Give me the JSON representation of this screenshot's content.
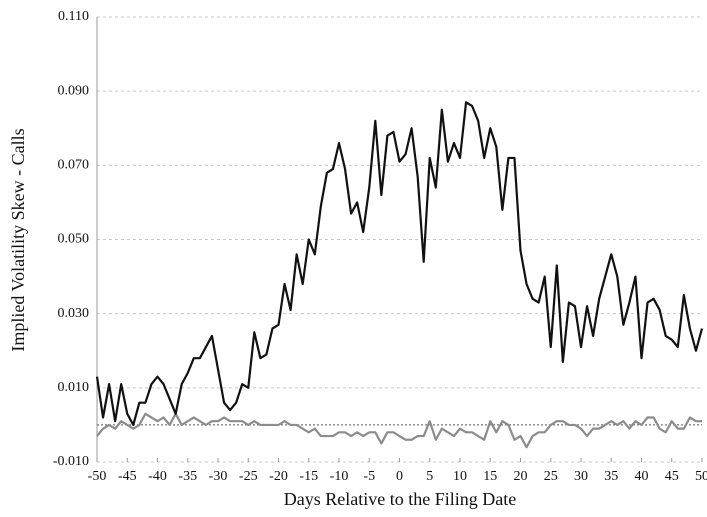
{
  "chart_data": {
    "type": "line",
    "x_label": "Days Relative to the Filing Date",
    "y_label": "Implied Volatility Skew - Calls",
    "xlim": [
      -50,
      50
    ],
    "xticks": [
      -50,
      -45,
      -40,
      -35,
      -30,
      -25,
      -20,
      -15,
      -10,
      -5,
      0,
      5,
      10,
      15,
      20,
      25,
      30,
      35,
      40,
      45,
      50
    ],
    "ylim": [
      -0.01,
      0.11
    ],
    "yticks": [
      {
        "value": -0.01,
        "label": "-0.010"
      },
      {
        "value": 0.01,
        "label": "0.010"
      },
      {
        "value": 0.03,
        "label": "0.030"
      },
      {
        "value": 0.05,
        "label": "0.050"
      },
      {
        "value": 0.07,
        "label": "0.070"
      },
      {
        "value": 0.09,
        "label": "0.090"
      },
      {
        "value": 0.11,
        "label": "0.110"
      }
    ],
    "grid": true,
    "reference_line": 0,
    "x": [
      -50,
      -49,
      -48,
      -47,
      -46,
      -45,
      -44,
      -43,
      -42,
      -41,
      -40,
      -39,
      -38,
      -37,
      -36,
      -35,
      -34,
      -33,
      -32,
      -31,
      -30,
      -29,
      -28,
      -27,
      -26,
      -25,
      -24,
      -23,
      -22,
      -21,
      -20,
      -19,
      -18,
      -17,
      -16,
      -15,
      -14,
      -13,
      -12,
      -11,
      -10,
      -9,
      -8,
      -7,
      -6,
      -5,
      -4,
      -3,
      -2,
      -1,
      0,
      1,
      2,
      3,
      4,
      5,
      6,
      7,
      8,
      9,
      10,
      11,
      12,
      13,
      14,
      15,
      16,
      17,
      18,
      19,
      20,
      21,
      22,
      23,
      24,
      25,
      26,
      27,
      28,
      29,
      30,
      31,
      32,
      33,
      34,
      35,
      36,
      37,
      38,
      39,
      40,
      41,
      42,
      43,
      44,
      45,
      46,
      47,
      48,
      49,
      50
    ],
    "series": [
      {
        "color": "#111111",
        "values": [
          0.013,
          0.002,
          0.011,
          0.001,
          0.011,
          0.003,
          0.0,
          0.006,
          0.006,
          0.011,
          0.013,
          0.011,
          0.007,
          0.003,
          0.011,
          0.014,
          0.018,
          0.018,
          0.021,
          0.024,
          0.015,
          0.006,
          0.004,
          0.006,
          0.011,
          0.01,
          0.025,
          0.018,
          0.019,
          0.026,
          0.027,
          0.038,
          0.031,
          0.046,
          0.038,
          0.05,
          0.046,
          0.059,
          0.068,
          0.069,
          0.076,
          0.069,
          0.057,
          0.06,
          0.052,
          0.064,
          0.082,
          0.062,
          0.078,
          0.079,
          0.071,
          0.073,
          0.08,
          0.067,
          0.044,
          0.072,
          0.064,
          0.085,
          0.071,
          0.076,
          0.072,
          0.087,
          0.086,
          0.082,
          0.072,
          0.08,
          0.075,
          0.058,
          0.072,
          0.072,
          0.047,
          0.038,
          0.034,
          0.033,
          0.04,
          0.021,
          0.043,
          0.017,
          0.033,
          0.032,
          0.021,
          0.032,
          0.024,
          0.034,
          0.04,
          0.046,
          0.04,
          0.027,
          0.033,
          0.04,
          0.018,
          0.033,
          0.034,
          0.031,
          0.024,
          0.023,
          0.021,
          0.035,
          0.026,
          0.02,
          0.026
        ]
      },
      {
        "color": "#8c8c8c",
        "values": [
          -0.003,
          -0.001,
          0.0,
          -0.001,
          0.001,
          0.0,
          -0.001,
          0.0,
          0.003,
          0.002,
          0.001,
          0.002,
          0.0,
          0.003,
          0.0,
          0.001,
          0.002,
          0.001,
          0.0,
          0.001,
          0.001,
          0.002,
          0.001,
          0.001,
          0.001,
          0.0,
          0.001,
          0.0,
          0.0,
          0.0,
          0.0,
          0.001,
          0.0,
          0.0,
          -0.001,
          -0.002,
          -0.001,
          -0.003,
          -0.003,
          -0.003,
          -0.002,
          -0.002,
          -0.003,
          -0.002,
          -0.003,
          -0.002,
          -0.002,
          -0.005,
          -0.002,
          -0.002,
          -0.003,
          -0.004,
          -0.004,
          -0.003,
          -0.003,
          0.001,
          -0.004,
          -0.001,
          -0.002,
          -0.003,
          -0.001,
          -0.002,
          -0.002,
          -0.003,
          -0.004,
          0.001,
          -0.002,
          0.001,
          0.0,
          -0.004,
          -0.003,
          -0.006,
          -0.003,
          -0.002,
          -0.002,
          0.0,
          0.001,
          0.001,
          0.0,
          0.0,
          -0.001,
          -0.003,
          -0.001,
          -0.001,
          0.0,
          0.001,
          0.0,
          0.001,
          -0.001,
          0.001,
          0.0,
          0.002,
          0.002,
          -0.001,
          -0.002,
          0.001,
          -0.001,
          -0.001,
          0.002,
          0.001,
          0.001
        ]
      }
    ]
  }
}
